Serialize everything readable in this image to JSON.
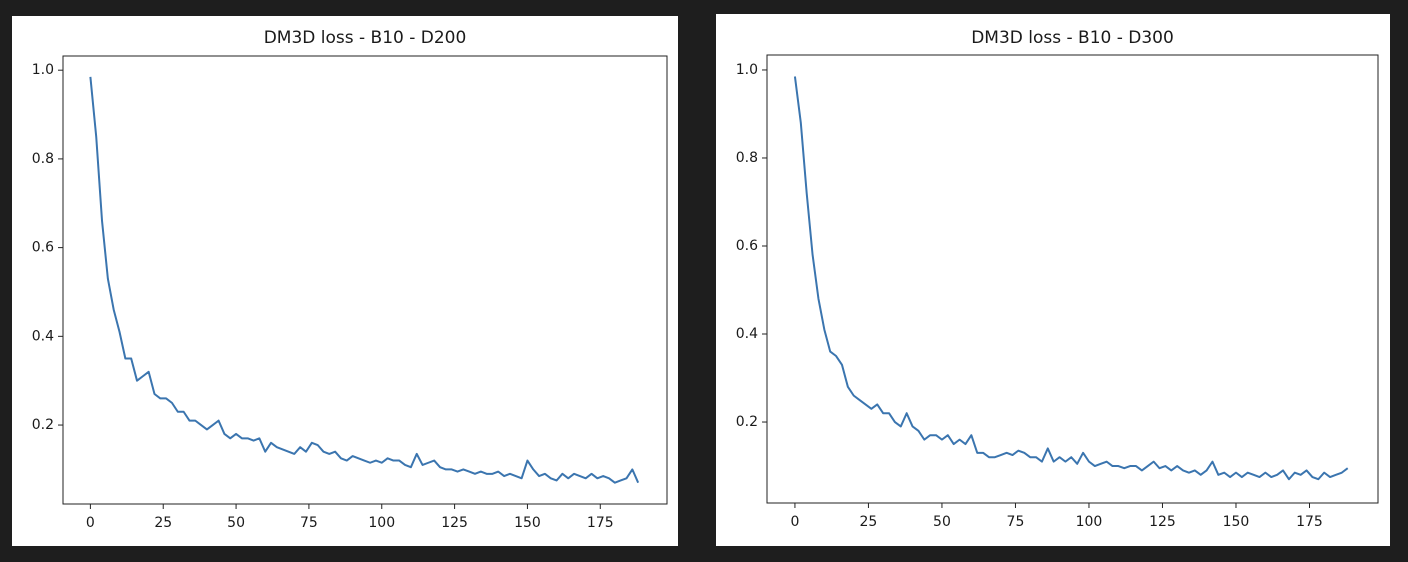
{
  "chart_data": [
    {
      "type": "line",
      "title": "DM3D loss - B10 - D200",
      "x": [
        0,
        2,
        4,
        6,
        8,
        10,
        12,
        14,
        16,
        18,
        20,
        22,
        24,
        26,
        28,
        30,
        32,
        34,
        36,
        38,
        40,
        42,
        44,
        46,
        48,
        50,
        52,
        54,
        56,
        58,
        60,
        62,
        64,
        66,
        68,
        70,
        72,
        74,
        76,
        78,
        80,
        82,
        84,
        86,
        88,
        90,
        92,
        94,
        96,
        98,
        100,
        102,
        104,
        106,
        108,
        110,
        112,
        114,
        116,
        118,
        120,
        122,
        124,
        126,
        128,
        130,
        132,
        134,
        136,
        138,
        140,
        142,
        144,
        146,
        148,
        150,
        152,
        154,
        156,
        158,
        160,
        162,
        164,
        166,
        168,
        170,
        172,
        174,
        176,
        178,
        180,
        182,
        184,
        186,
        188
      ],
      "series": [
        {
          "color": "#3b75af",
          "values": [
            0.985,
            0.85,
            0.66,
            0.53,
            0.46,
            0.41,
            0.35,
            0.35,
            0.3,
            0.31,
            0.32,
            0.27,
            0.26,
            0.26,
            0.25,
            0.23,
            0.23,
            0.21,
            0.21,
            0.2,
            0.19,
            0.2,
            0.21,
            0.18,
            0.17,
            0.18,
            0.17,
            0.17,
            0.165,
            0.17,
            0.14,
            0.16,
            0.15,
            0.145,
            0.14,
            0.135,
            0.15,
            0.14,
            0.16,
            0.155,
            0.14,
            0.135,
            0.14,
            0.125,
            0.12,
            0.13,
            0.125,
            0.12,
            0.115,
            0.12,
            0.115,
            0.125,
            0.12,
            0.12,
            0.11,
            0.105,
            0.135,
            0.11,
            0.115,
            0.12,
            0.105,
            0.1,
            0.1,
            0.095,
            0.1,
            0.095,
            0.09,
            0.095,
            0.09,
            0.09,
            0.095,
            0.085,
            0.09,
            0.085,
            0.08,
            0.12,
            0.1,
            0.085,
            0.09,
            0.08,
            0.075,
            0.09,
            0.08,
            0.09,
            0.085,
            0.08,
            0.09,
            0.08,
            0.085,
            0.08,
            0.07,
            0.075,
            0.08,
            0.1,
            0.07
          ]
        }
      ],
      "xlim": [
        -9.4,
        197.9
      ],
      "xticks": [
        0,
        25,
        50,
        75,
        100,
        125,
        150,
        175
      ],
      "ylim": [
        0.022,
        1.032
      ],
      "yticks": [
        0.2,
        0.4,
        0.6,
        0.8,
        {
          "value": 1,
          "label": "1.0"
        }
      ],
      "grid": false
    },
    {
      "type": "line",
      "title": "DM3D loss - B10 - D300",
      "x": [
        0,
        2,
        4,
        6,
        8,
        10,
        12,
        14,
        16,
        18,
        20,
        22,
        24,
        26,
        28,
        30,
        32,
        34,
        36,
        38,
        40,
        42,
        44,
        46,
        48,
        50,
        52,
        54,
        56,
        58,
        60,
        62,
        64,
        66,
        68,
        70,
        72,
        74,
        76,
        78,
        80,
        82,
        84,
        86,
        88,
        90,
        92,
        94,
        96,
        98,
        100,
        102,
        104,
        106,
        108,
        110,
        112,
        114,
        116,
        118,
        120,
        122,
        124,
        126,
        128,
        130,
        132,
        134,
        136,
        138,
        140,
        142,
        144,
        146,
        148,
        150,
        152,
        154,
        156,
        158,
        160,
        162,
        164,
        166,
        168,
        170,
        172,
        174,
        176,
        178,
        180,
        182,
        184,
        186,
        188
      ],
      "series": [
        {
          "color": "#3b75af",
          "values": [
            0.985,
            0.88,
            0.72,
            0.58,
            0.48,
            0.41,
            0.36,
            0.35,
            0.33,
            0.28,
            0.26,
            0.25,
            0.24,
            0.23,
            0.24,
            0.22,
            0.22,
            0.2,
            0.19,
            0.22,
            0.19,
            0.18,
            0.16,
            0.17,
            0.17,
            0.16,
            0.17,
            0.15,
            0.16,
            0.15,
            0.17,
            0.13,
            0.13,
            0.12,
            0.12,
            0.125,
            0.13,
            0.125,
            0.135,
            0.13,
            0.12,
            0.12,
            0.11,
            0.14,
            0.11,
            0.12,
            0.11,
            0.12,
            0.105,
            0.13,
            0.11,
            0.1,
            0.105,
            0.11,
            0.1,
            0.1,
            0.095,
            0.1,
            0.1,
            0.09,
            0.1,
            0.11,
            0.095,
            0.1,
            0.09,
            0.1,
            0.09,
            0.085,
            0.09,
            0.08,
            0.09,
            0.11,
            0.08,
            0.085,
            0.075,
            0.085,
            0.075,
            0.085,
            0.08,
            0.075,
            0.085,
            0.075,
            0.08,
            0.09,
            0.07,
            0.085,
            0.08,
            0.09,
            0.075,
            0.07,
            0.085,
            0.075,
            0.08,
            0.085,
            0.095
          ]
        }
      ],
      "xlim": [
        -9.5,
        198.3
      ],
      "xticks": [
        0,
        25,
        50,
        75,
        100,
        125,
        150,
        175
      ],
      "ylim": [
        0.016,
        1.034
      ],
      "yticks": [
        0.2,
        0.4,
        0.6,
        0.8,
        {
          "value": 1,
          "label": "1.0"
        }
      ],
      "grid": false
    }
  ]
}
